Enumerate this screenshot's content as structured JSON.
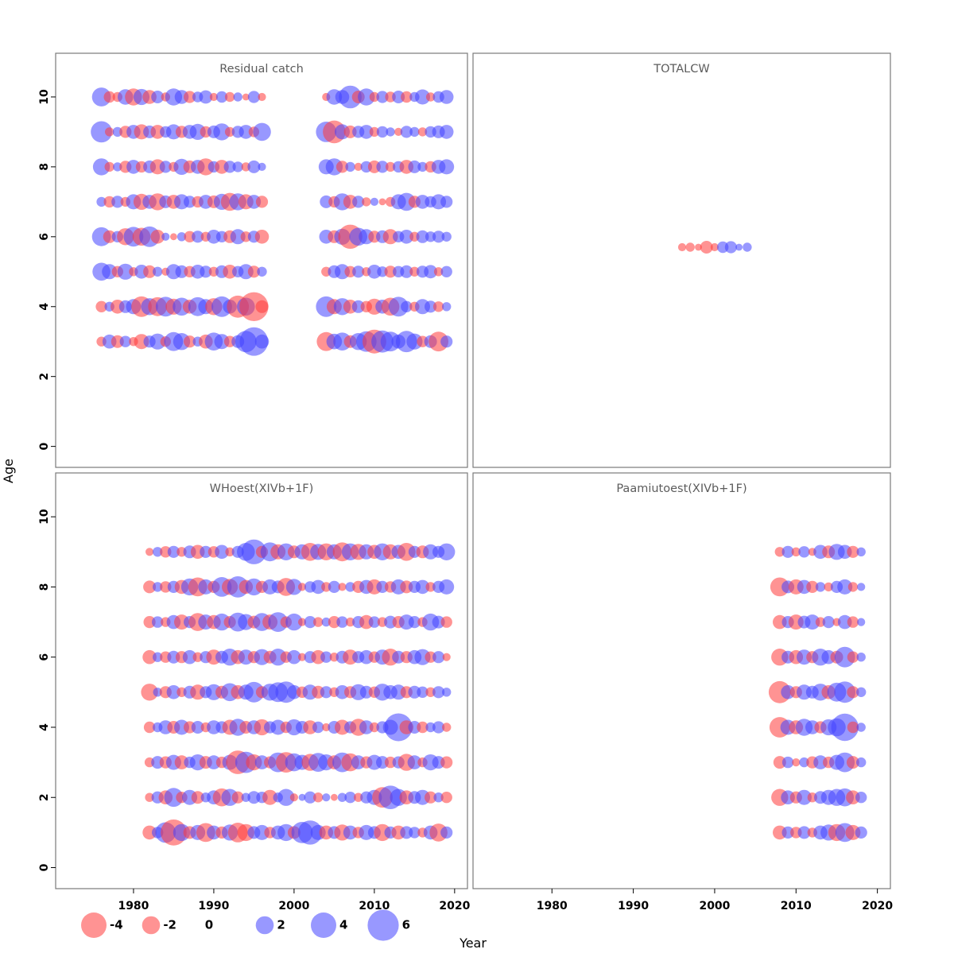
{
  "chart_data": {
    "type": "scatter",
    "subtype": "bubble-residuals",
    "xlabel": "Year",
    "ylabel": "Age",
    "x_ticks": [
      1980,
      1990,
      2000,
      2010,
      2020
    ],
    "y_ticks": [
      0,
      2,
      4,
      6,
      8,
      10
    ],
    "xlim": [
      1970.3,
      2021.6
    ],
    "ylim": [
      -0.6,
      11.25
    ],
    "grid": "off",
    "colors": {
      "positive": "#4444ff",
      "negative": "#ff3b3b"
    },
    "legend": {
      "position": "bottom",
      "values": [
        -4,
        -2,
        0,
        2,
        4,
        6
      ]
    },
    "panels": [
      {
        "title": "Residual catch",
        "grid": [
          0,
          0
        ],
        "series": [
          {
            "age": 3,
            "start_year": 1976,
            "values": [
              -0.6,
              1.2,
              -1.0,
              0.8,
              -0.5,
              -1.4,
              0.9,
              1.6,
              -0.7,
              2.2,
              1.8,
              -0.9,
              0.6,
              -1.2,
              2.0,
              1.4,
              -0.8,
              1.0,
              2.8,
              5.0,
              1.2
            ]
          },
          {
            "age": 3,
            "start_year": 2004,
            "values": [
              -2.2,
              1.5,
              2.0,
              -1.0,
              1.8,
              2.6,
              -3.5,
              3.0,
              2.4,
              1.2,
              2.8,
              1.6,
              -0.8,
              1.0,
              -2.4,
              0.9
            ]
          },
          {
            "age": 4,
            "start_year": 1976,
            "values": [
              -0.8,
              0.6,
              -1.2,
              1.0,
              1.4,
              -2.6,
              1.8,
              -2.2,
              2.4,
              -1.6,
              2.0,
              -1.2,
              2.2,
              1.4,
              -1.8,
              2.6,
              1.2,
              -3.0,
              2.0,
              -5.2,
              -1.0
            ]
          },
          {
            "age": 4,
            "start_year": 2004,
            "values": [
              2.6,
              -1.4,
              1.8,
              -1.2,
              1.0,
              -0.8,
              -1.6,
              1.2,
              -2.0,
              2.4,
              0.8,
              -0.6,
              1.4,
              0.9,
              -0.7,
              0.5
            ]
          },
          {
            "age": 5,
            "start_year": 1976,
            "values": [
              2.0,
              1.4,
              -0.8,
              1.6,
              -0.5,
              1.2,
              -1.0,
              0.6,
              -0.4,
              1.4,
              1.0,
              -0.8,
              1.2,
              0.9,
              -0.6,
              1.0,
              -1.2,
              0.8,
              1.4,
              -0.9,
              0.6
            ]
          },
          {
            "age": 5,
            "start_year": 2004,
            "values": [
              -0.6,
              1.0,
              1.4,
              -0.8,
              0.9,
              -0.5,
              1.2,
              0.7,
              -0.9,
              0.8,
              1.0,
              -0.6,
              0.9,
              1.1,
              -0.5,
              0.8
            ]
          },
          {
            "age": 6,
            "start_year": 1976,
            "values": [
              2.2,
              -1.0,
              0.8,
              -1.8,
              2.4,
              -2.0,
              2.6,
              -1.2,
              0.4,
              -0.3,
              0.5,
              -0.8,
              0.9,
              -0.6,
              1.2,
              0.8,
              -1.0,
              1.4,
              -0.7,
              0.9,
              -1.2
            ]
          },
          {
            "age": 6,
            "start_year": 2004,
            "values": [
              1.2,
              -1.0,
              1.6,
              -3.6,
              2.0,
              1.4,
              -0.9,
              1.0,
              -1.4,
              0.8,
              1.2,
              -0.6,
              1.0,
              0.7,
              0.9,
              0.6
            ]
          },
          {
            "age": 7,
            "start_year": 1976,
            "values": [
              0.6,
              -0.8,
              0.9,
              -0.6,
              1.4,
              -1.6,
              1.2,
              -1.8,
              1.0,
              -1.2,
              1.4,
              0.9,
              -0.8,
              1.2,
              -1.0,
              1.6,
              -2.0,
              1.8,
              -1.4,
              1.2,
              -0.9
            ]
          },
          {
            "age": 7,
            "start_year": 2004,
            "values": [
              1.0,
              -0.8,
              1.8,
              -1.2,
              0.9,
              -0.5,
              0.4,
              -0.3,
              -0.6,
              1.4,
              2.0,
              -0.9,
              1.2,
              0.8,
              1.4,
              0.9
            ]
          },
          {
            "age": 8,
            "start_year": 1976,
            "values": [
              1.8,
              -0.6,
              0.5,
              -0.9,
              1.2,
              -0.8,
              1.0,
              -1.4,
              0.9,
              -0.6,
              1.6,
              -1.0,
              1.2,
              -1.8,
              0.8,
              -1.2,
              0.9,
              0.7,
              -0.5,
              1.0,
              0.4
            ]
          },
          {
            "age": 8,
            "start_year": 2004,
            "values": [
              1.4,
              1.8,
              -0.9,
              0.6,
              -0.4,
              0.8,
              -1.0,
              0.9,
              -0.6,
              0.8,
              -1.2,
              1.0,
              0.6,
              -0.8,
              1.2,
              1.4
            ]
          },
          {
            "age": 9,
            "start_year": 1976,
            "values": [
              2.8,
              -0.5,
              0.6,
              -0.9,
              1.2,
              -1.4,
              1.0,
              -1.2,
              0.8,
              1.4,
              -0.9,
              1.2,
              1.6,
              -0.8,
              1.0,
              1.8,
              -0.6,
              0.9,
              1.2,
              -0.7,
              2.0
            ]
          },
          {
            "age": 9,
            "start_year": 2004,
            "values": [
              2.6,
              -3.2,
              1.4,
              -1.0,
              0.9,
              1.2,
              -0.6,
              0.8,
              0.5,
              -0.4,
              0.9,
              0.6,
              -0.5,
              0.8,
              1.0,
              1.2
            ]
          },
          {
            "age": 10,
            "start_year": 1976,
            "values": [
              2.2,
              -0.8,
              -0.6,
              1.5,
              -1.8,
              1.6,
              -1.2,
              1.0,
              -0.5,
              1.8,
              1.2,
              -0.9,
              0.7,
              1.1,
              -0.4,
              0.8,
              -0.6,
              0.5,
              -0.3,
              0.9,
              -0.4
            ]
          },
          {
            "age": 10,
            "start_year": 2004,
            "values": [
              -0.4,
              1.5,
              1.2,
              3.2,
              -1.0,
              1.8,
              -0.6,
              0.9,
              -0.7,
              1.0,
              -0.8,
              0.6,
              1.4,
              -0.5,
              0.8,
              1.2
            ]
          }
        ]
      },
      {
        "title": "TOTALCW",
        "grid": [
          0,
          1
        ],
        "series": [
          {
            "age": 5.7,
            "start_year": 1996,
            "values": [
              -0.4,
              -0.5,
              -0.3,
              -1.0,
              -0.4,
              0.8,
              0.9,
              0.3,
              0.5
            ]
          }
        ]
      },
      {
        "title": "WHoest(XIVb+1F)",
        "grid": [
          1,
          0
        ],
        "series": [
          {
            "age": 1,
            "start_year": 1982,
            "values": [
              -1.2,
              0.8,
              2.6,
              -4.2,
              1.8,
              -1.0,
              1.4,
              -2.2,
              1.2,
              -0.9,
              1.6,
              -2.4,
              -1.8,
              1.0,
              1.4,
              -0.8,
              1.2,
              1.8,
              -1.0,
              2.8,
              3.6,
              1.4,
              -1.2,
              1.0,
              -1.6,
              1.2,
              -0.8,
              1.4,
              1.0,
              -1.8,
              0.9,
              -1.2,
              1.0,
              0.8,
              -0.6,
              1.2,
              -2.0,
              0.9
            ]
          },
          {
            "age": 2,
            "start_year": 1982,
            "values": [
              -0.5,
              0.9,
              -1.2,
              2.2,
              -0.8,
              1.4,
              -1.0,
              0.6,
              1.2,
              -2.0,
              1.8,
              -0.9,
              0.5,
              1.0,
              0.8,
              -1.4,
              0.6,
              1.8,
              -0.4,
              0.3,
              0.9,
              -0.6,
              0.4,
              -0.3,
              0.5,
              0.8,
              -0.5,
              0.9,
              1.4,
              -2.6,
              3.4,
              1.8,
              -1.2,
              1.0,
              1.4,
              -0.9,
              0.6,
              -0.8
            ]
          },
          {
            "age": 3,
            "start_year": 1982,
            "values": [
              -0.6,
              1.0,
              -0.9,
              1.4,
              -1.2,
              0.8,
              1.6,
              -1.0,
              1.2,
              -0.8,
              1.4,
              -3.4,
              2.8,
              -1.6,
              1.2,
              -0.9,
              2.4,
              -2.6,
              2.0,
              1.4,
              -1.8,
              2.2,
              1.6,
              -1.2,
              2.4,
              -2.0,
              1.2,
              -0.9,
              1.4,
              1.0,
              -0.8,
              0.9,
              -1.8,
              1.2,
              -0.6,
              1.6,
              1.0,
              -0.9
            ]
          },
          {
            "age": 4,
            "start_year": 1982,
            "values": [
              -0.8,
              0.6,
              1.2,
              -1.0,
              1.4,
              -0.9,
              1.0,
              -0.6,
              1.2,
              0.9,
              -1.4,
              1.8,
              -1.0,
              1.2,
              -1.6,
              0.9,
              1.4,
              -0.8,
              1.6,
              1.0,
              -1.2,
              0.8,
              -0.4,
              1.0,
              -1.4,
              0.9,
              -1.8,
              1.2,
              -0.6,
              0.9,
              1.4,
              4.8,
              -1.2,
              1.0,
              -0.8,
              0.6,
              0.9,
              -0.5
            ]
          },
          {
            "age": 5,
            "start_year": 1982,
            "values": [
              -1.8,
              0.5,
              -0.9,
              1.2,
              -0.6,
              1.0,
              -1.4,
              0.9,
              1.6,
              -1.0,
              2.0,
              -1.2,
              1.4,
              2.6,
              -0.9,
              1.8,
              2.4,
              2.8,
              1.2,
              -0.8,
              1.4,
              -1.0,
              0.9,
              -0.6,
              1.2,
              -0.9,
              1.6,
              1.0,
              -0.8,
              1.8,
              1.2,
              1.4,
              -0.9,
              1.0,
              0.8,
              -0.6,
              0.9,
              0.5
            ]
          },
          {
            "age": 6,
            "start_year": 1982,
            "values": [
              -1.2,
              0.6,
              -0.8,
              1.0,
              -0.9,
              1.2,
              -0.6,
              0.9,
              -1.4,
              1.0,
              1.8,
              -1.2,
              1.4,
              -0.9,
              1.6,
              -1.0,
              1.8,
              -0.8,
              1.2,
              -0.4,
              0.9,
              -1.2,
              0.8,
              -0.5,
              1.0,
              -1.4,
              0.9,
              1.2,
              -0.8,
              1.4,
              -1.8,
              1.0,
              -0.9,
              1.2,
              1.6,
              -0.8,
              0.9,
              -0.4
            ]
          },
          {
            "age": 7,
            "start_year": 1982,
            "values": [
              -0.9,
              0.8,
              -0.6,
              1.2,
              -1.4,
              0.9,
              -2.0,
              1.4,
              -1.2,
              1.8,
              -0.9,
              2.2,
              1.6,
              -1.0,
              2.0,
              -1.4,
              2.4,
              -0.8,
              1.8,
              -0.4,
              0.9,
              -0.6,
              0.5,
              -0.9,
              0.8,
              -0.5,
              0.9,
              -1.2,
              0.8,
              -0.6,
              1.0,
              -0.9,
              1.4,
              0.9,
              -0.6,
              1.8,
              1.0,
              -0.8
            ]
          },
          {
            "age": 8,
            "start_year": 1982,
            "values": [
              -1.0,
              0.6,
              -0.8,
              0.9,
              -1.2,
              1.8,
              -2.2,
              1.4,
              -0.9,
              2.4,
              -1.6,
              2.8,
              -1.2,
              1.8,
              -0.9,
              1.4,
              1.0,
              -2.0,
              1.6,
              -0.4,
              0.8,
              1.2,
              -0.6,
              0.9,
              -0.4,
              0.6,
              -0.9,
              1.2,
              -1.4,
              0.9,
              -0.8,
              1.4,
              -1.0,
              0.9,
              1.2,
              -0.6,
              0.9,
              1.4
            ]
          },
          {
            "age": 9,
            "start_year": 1982,
            "values": [
              -0.4,
              0.6,
              -0.8,
              0.9,
              -0.6,
              1.0,
              -1.2,
              0.9,
              -0.8,
              1.2,
              -0.5,
              0.9,
              2.0,
              3.8,
              -0.9,
              2.2,
              -1.4,
              1.8,
              -1.0,
              1.4,
              -2.0,
              1.6,
              -1.8,
              1.4,
              -2.2,
              1.8,
              -1.6,
              1.4,
              -1.2,
              1.8,
              -1.4,
              1.2,
              -2.0,
              0.9,
              -1.0,
              1.4,
              0.9,
              1.8
            ]
          }
        ]
      },
      {
        "title": "Paamiutoest(XIVb+1F)",
        "grid": [
          1,
          1
        ],
        "series": [
          {
            "age": 1,
            "start_year": 2008,
            "values": [
              -1.2,
              0.9,
              -0.8,
              1.0,
              -0.6,
              1.2,
              1.6,
              -1.8,
              2.2,
              -1.4,
              0.9
            ]
          },
          {
            "age": 2,
            "start_year": 2008,
            "values": [
              -1.8,
              1.2,
              -0.9,
              1.4,
              -0.6,
              1.0,
              1.4,
              1.8,
              2.0,
              -1.2,
              0.8
            ]
          },
          {
            "age": 3,
            "start_year": 2008,
            "values": [
              -1.0,
              0.8,
              -0.4,
              0.6,
              -0.9,
              1.2,
              -0.8,
              1.4,
              2.4,
              -1.0,
              0.6
            ]
          },
          {
            "age": 4,
            "start_year": 2008,
            "values": [
              -2.6,
              1.4,
              -1.2,
              1.8,
              1.2,
              -0.9,
              1.6,
              2.0,
              4.6,
              -0.8,
              0.5
            ]
          },
          {
            "age": 5,
            "start_year": 2008,
            "values": [
              -3.0,
              1.2,
              -0.9,
              1.4,
              1.0,
              1.8,
              -1.2,
              2.2,
              2.8,
              -0.9,
              0.6
            ]
          },
          {
            "age": 6,
            "start_year": 2008,
            "values": [
              -1.8,
              1.0,
              -1.2,
              1.4,
              -0.9,
              1.8,
              1.2,
              -1.0,
              2.6,
              -0.8,
              0.5
            ]
          },
          {
            "age": 7,
            "start_year": 2008,
            "values": [
              -1.2,
              0.9,
              -1.4,
              1.0,
              1.4,
              -0.6,
              0.9,
              -0.4,
              1.2,
              -0.8,
              0.4
            ]
          },
          {
            "age": 8,
            "start_year": 2008,
            "values": [
              -2.2,
              1.0,
              -1.4,
              1.2,
              -0.9,
              0.6,
              -0.5,
              0.9,
              1.4,
              -0.6,
              0.4
            ]
          },
          {
            "age": 9,
            "start_year": 2008,
            "values": [
              -0.6,
              0.9,
              -0.5,
              0.8,
              -0.4,
              1.2,
              -1.0,
              1.6,
              1.2,
              -0.9,
              0.5
            ]
          }
        ]
      }
    ]
  }
}
